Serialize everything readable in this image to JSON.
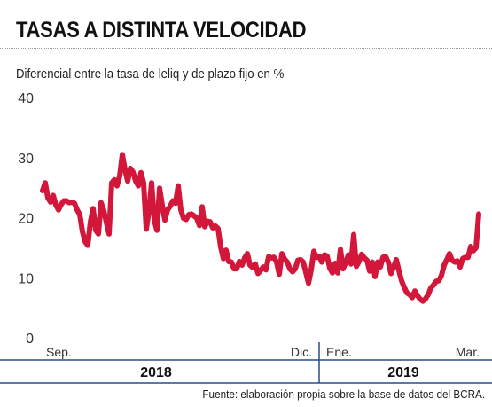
{
  "header": {
    "title": "TASAS A DISTINTA VELOCIDAD",
    "subtitle": "Diferencial entre la tasa de leliq y de plazo fijo en %"
  },
  "footer": {
    "source": "Fuente: elaboración propia sobre la base de datos del BCRA."
  },
  "colors": {
    "line": "#d3173a",
    "axis": "#2b4b8c",
    "text": "#222222"
  },
  "chart_data": {
    "type": "line",
    "title": "TASAS A DISTINTA VELOCIDAD",
    "ylabel": "Diferencial entre la tasa de leliq y de plazo fijo en %",
    "ylim": [
      0,
      40
    ],
    "yticks": [
      "0",
      "10",
      "20",
      "30",
      "40"
    ],
    "xticks": [
      "Sep.",
      "Dic.",
      "Ene.",
      "Mar."
    ],
    "xtick_index": [
      0,
      126,
      128,
      166
    ],
    "years": [
      "2018",
      "2019"
    ],
    "grid": false,
    "legend": "none",
    "series": [
      {
        "values": [
          24.5,
          25.8,
          23.3,
          22.6,
          23.7,
          22.1,
          21.3,
          22.2,
          22.8,
          22.8,
          22.5,
          22.6,
          22.4,
          21.3,
          20.5,
          17.7,
          16.0,
          15.4,
          19.3,
          21.5,
          17.9,
          17.3,
          22.5,
          21.2,
          19.2,
          17.3,
          25.8,
          26.3,
          25.3,
          26.9,
          30.5,
          28.0,
          26.1,
          28.2,
          27.6,
          26.1,
          25.3,
          27.5,
          25.8,
          18.1,
          21.1,
          25.8,
          19.6,
          17.9,
          24.9,
          22.1,
          19.6,
          21.3,
          21.9,
          22.8,
          22.4,
          25.3,
          21.3,
          19.9,
          19.7,
          20.5,
          20.6,
          20.3,
          19.9,
          18.7,
          21.8,
          18.5,
          19.4,
          19.3,
          18.3,
          18.6,
          18.2,
          15.1,
          13.2,
          14.6,
          12.7,
          12.6,
          11.5,
          11.5,
          12.7,
          12.1,
          13.3,
          14.0,
          12.1,
          11.7,
          12.3,
          10.7,
          11.2,
          11.8,
          11.3,
          13.5,
          13.3,
          13.4,
          12.6,
          10.6,
          14.0,
          13.1,
          12.6,
          11.5,
          11.0,
          11.5,
          12.9,
          13.0,
          12.6,
          10.9,
          9.1,
          11.3,
          14.4,
          13.4,
          13.6,
          12.6,
          13.8,
          13.6,
          11.6,
          10.8,
          12.4,
          10.8,
          14.7,
          11.5,
          12.5,
          13.8,
          12.3,
          17.2,
          11.9,
          12.7,
          13.9,
          13.3,
          12.9,
          11.1,
          12.6,
          10.2,
          12.6,
          11.8,
          13.4,
          13.5,
          12.6,
          10.7,
          11.8,
          13.0,
          11.2,
          9.5,
          8.4,
          7.5,
          7.2,
          6.7,
          7.8,
          7.0,
          6.4,
          6.1,
          6.5,
          7.2,
          8.3,
          8.8,
          9.4,
          9.5,
          10.4,
          12.1,
          13.0,
          14.0,
          12.9,
          12.6,
          12.8,
          11.8,
          13.2,
          13.4,
          13.4,
          15.2,
          14.5,
          15.0,
          20.6
        ]
      }
    ]
  }
}
